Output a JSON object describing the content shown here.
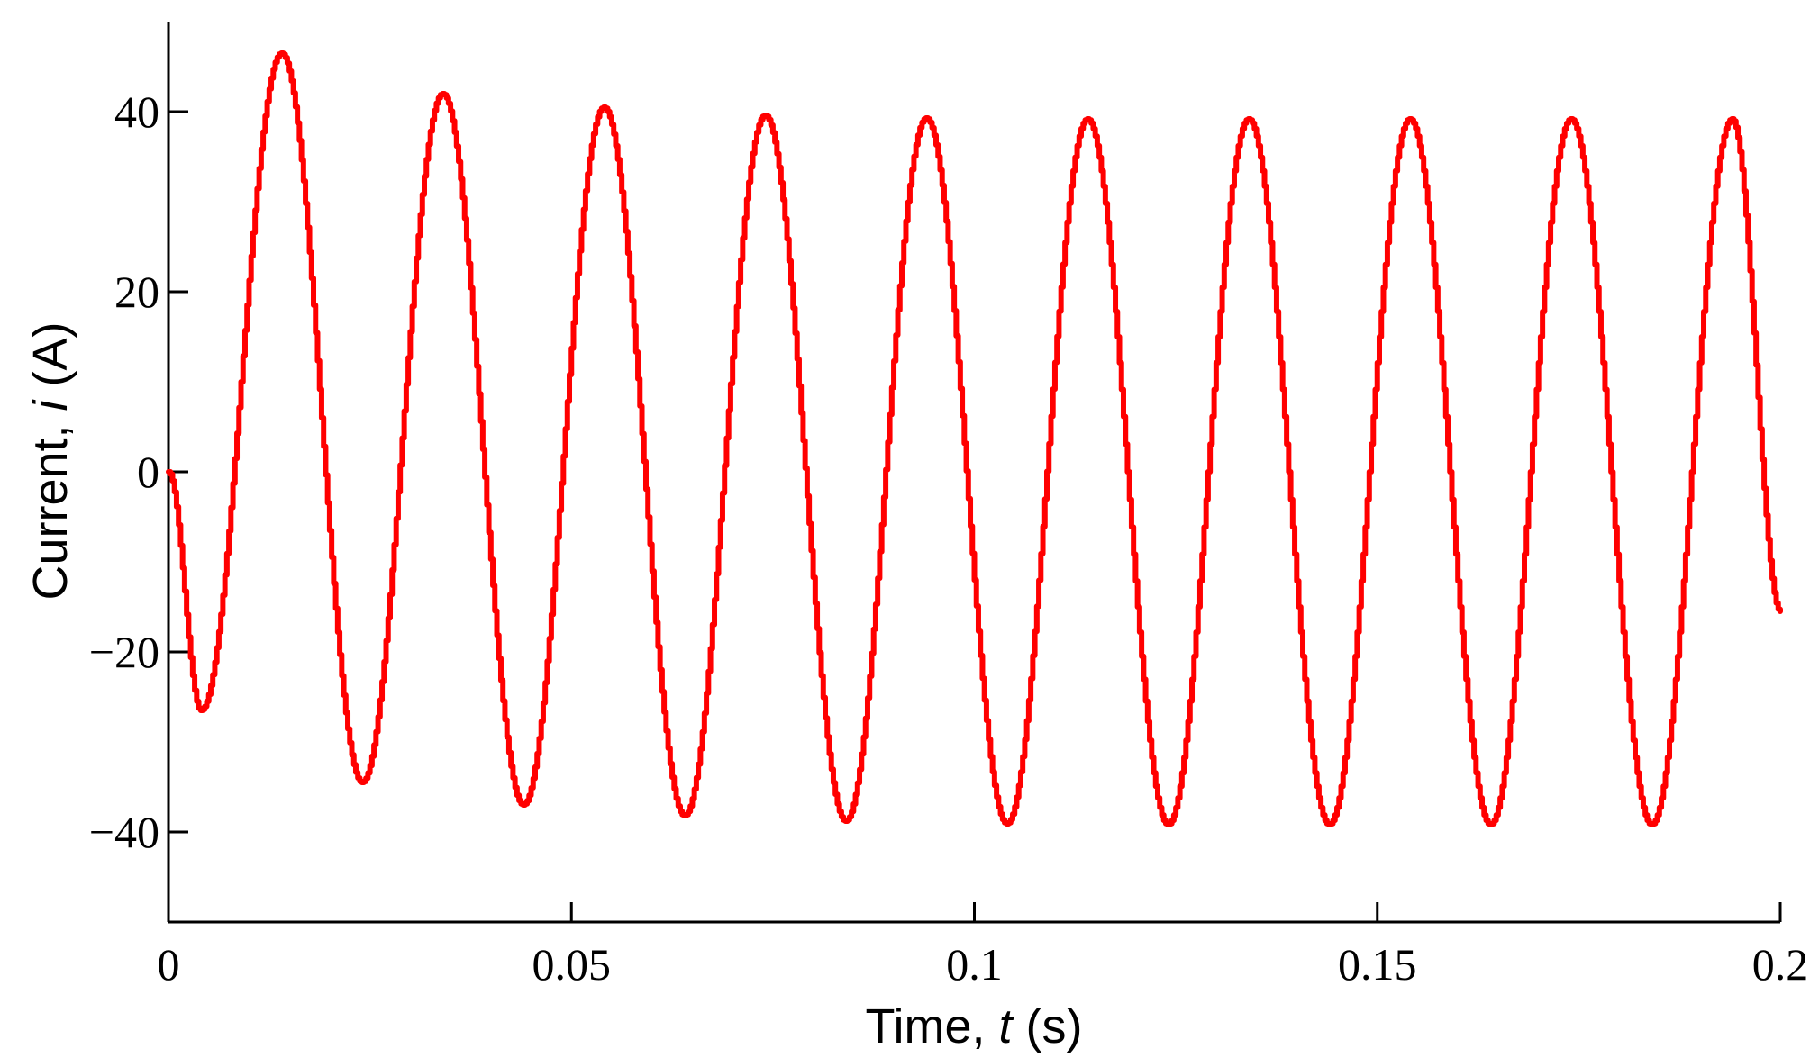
{
  "chart_data": {
    "type": "line",
    "title": "",
    "xlabel": {
      "prefix": "Time, ",
      "var": "t",
      "suffix": " (s)"
    },
    "ylabel": {
      "prefix": "Current, ",
      "var": "i",
      "suffix": " (A)"
    },
    "xlim": [
      0,
      0.2
    ],
    "ylim": [
      -50,
      50
    ],
    "xticks": [
      {
        "value": 0,
        "label": "0"
      },
      {
        "value": 0.05,
        "label": "0.05"
      },
      {
        "value": 0.1,
        "label": "0.1"
      },
      {
        "value": 0.15,
        "label": "0.15"
      },
      {
        "value": 0.2,
        "label": "0.2"
      }
    ],
    "yticks": [
      {
        "value": -40,
        "label": "−40"
      },
      {
        "value": -20,
        "label": "−20"
      },
      {
        "value": 0,
        "label": "0"
      },
      {
        "value": 20,
        "label": "20"
      },
      {
        "value": 40,
        "label": "40"
      }
    ],
    "grid": false,
    "legend": "none",
    "series": [
      {
        "color": "#ff0000",
        "x": [
          0,
          0.004,
          0.014,
          0.024,
          0.034,
          0.044,
          0.054,
          0.064,
          0.074,
          0.084,
          0.094,
          0.104,
          0.114,
          0.124,
          0.134,
          0.144,
          0.154,
          0.164,
          0.174,
          0.184,
          0.194,
          0.2
        ],
        "y": [
          0,
          -26.5,
          46.5,
          -34.5,
          42,
          -37,
          40.5,
          -38.2,
          39.6,
          -38.8,
          39.3,
          -39.1,
          39.2,
          -39.2,
          39.2,
          -39.2,
          39.2,
          -39.2,
          39.2,
          -39.2,
          39.2,
          -15.5
        ]
      }
    ]
  }
}
